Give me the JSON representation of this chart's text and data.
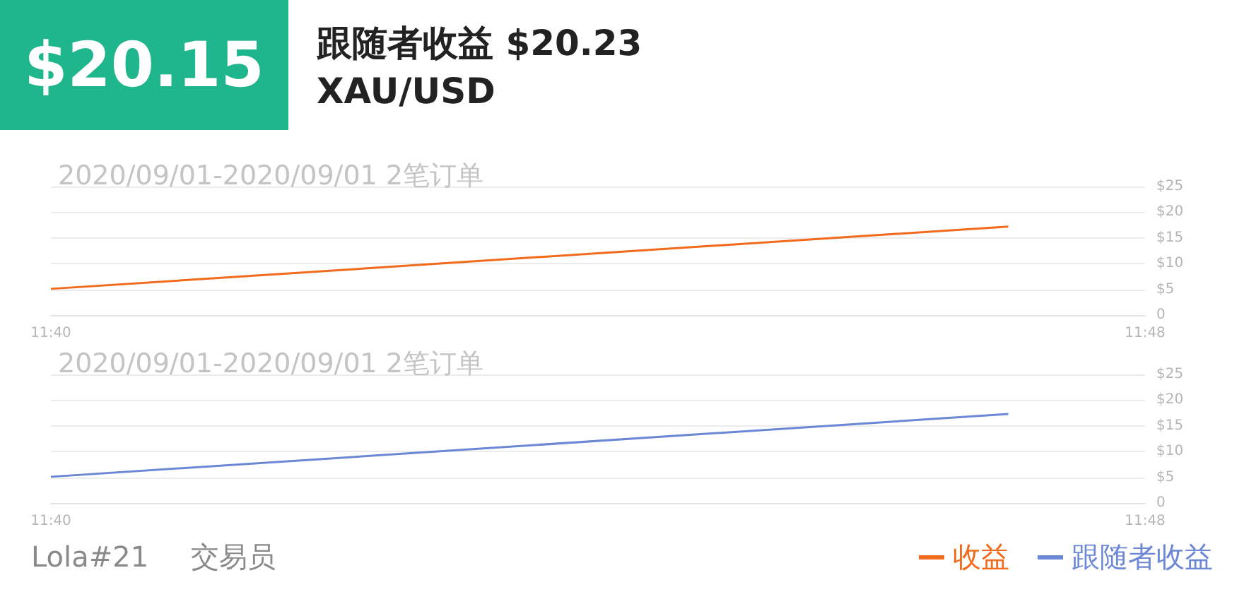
{
  "chart_data": [
    {
      "type": "line",
      "title": "2020/09/01-2020/09/01 2笔订单",
      "annotations": [
        "$20.15",
        "跟随者收益 $20.23",
        "XAU/USD",
        "Lola#21",
        "交易员"
      ],
      "series": [
        {
          "name": "收益",
          "color": "#f26b1d",
          "x": [
            "2020-09-01T11:40",
            "2020-09-01T11:47"
          ],
          "values": [
            5.1,
            17.2
          ]
        }
      ],
      "xlim": [
        "2020-09-01T11:40",
        "2020-09-01T11:48"
      ],
      "xticks": [
        {
          "value": "2020-09-01T11:40",
          "label": "11:40"
        },
        {
          "value": "2020-09-01T11:48",
          "label": "11:48"
        }
      ],
      "ylim": [
        0,
        25
      ],
      "yticks": [
        0,
        {
          "value": 5,
          "label": "$5"
        },
        {
          "value": 10,
          "label": "$10"
        },
        {
          "value": 15,
          "label": "$15"
        },
        {
          "value": 20,
          "label": "$20"
        },
        {
          "value": 25,
          "label": "$25"
        }
      ],
      "grid": "y",
      "marker": "none",
      "line_style": "solid",
      "legend": "bottom right"
    },
    {
      "type": "line",
      "title": "2020/09/01-2020/09/01 2笔订单",
      "series": [
        {
          "name": "跟随者收益",
          "color": "#6b87d6",
          "x": [
            "2020-09-01T11:40",
            "2020-09-01T11:47"
          ],
          "values": [
            5.1,
            17.3
          ]
        }
      ],
      "xlim": [
        "2020-09-01T11:40",
        "2020-09-01T11:48"
      ],
      "xticks": [
        {
          "value": "2020-09-01T11:40",
          "label": "11:40"
        },
        {
          "value": "2020-09-01T11:48",
          "label": "11:48"
        }
      ],
      "ylim": [
        0,
        25
      ],
      "yticks": [
        0,
        {
          "value": 5,
          "label": "$5"
        },
        {
          "value": 10,
          "label": "$10"
        },
        {
          "value": 15,
          "label": "$15"
        },
        {
          "value": 20,
          "label": "$20"
        },
        {
          "value": 25,
          "label": "$25"
        }
      ],
      "grid": "y",
      "marker": "none",
      "line_style": "solid",
      "legend": "bottom right"
    }
  ]
}
